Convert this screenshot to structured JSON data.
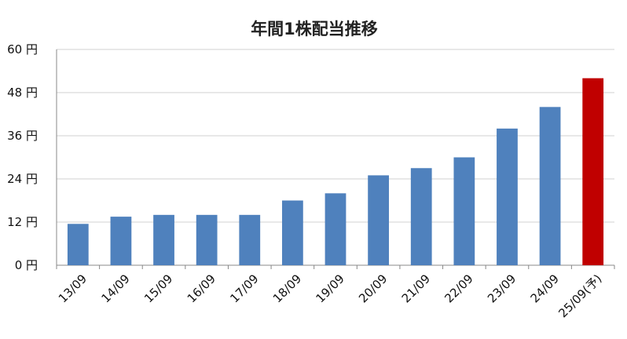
{
  "chart_data": {
    "type": "bar",
    "title": "年間1株配当推移",
    "categories": [
      "13/09",
      "14/09",
      "15/09",
      "16/09",
      "17/09",
      "18/09",
      "19/09",
      "20/09",
      "21/09",
      "22/09",
      "23/09",
      "24/09",
      "25/09(予)"
    ],
    "values": [
      11.5,
      13.5,
      14,
      14,
      14,
      18,
      20,
      25,
      27,
      30,
      38,
      44,
      52
    ],
    "unit": "円",
    "yticks": [
      0,
      12,
      24,
      36,
      48,
      60
    ],
    "ylim": [
      0,
      60
    ],
    "grid": true,
    "colors": {
      "actual": "#4f81bd",
      "forecast": "#c00000"
    },
    "forecast_index": 12
  }
}
